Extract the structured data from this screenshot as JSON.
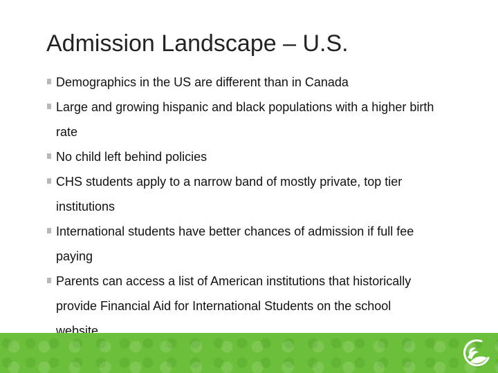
{
  "title": "Admission Landscape – U.S.",
  "bullets": [
    "Demographics in the US are different than in Canada",
    "Large and growing hispanic and black populations with a higher birth rate",
    "No child left behind policies",
    "CHS students apply to a narrow band of mostly private, top tier institutions",
    "International students have better chances of admission if full fee paying",
    "Parents can access a list of American institutions that historically provide Financial Aid for International Students on the school website"
  ],
  "colors": {
    "band": "#6cbf3a",
    "bullet": "#b8b8b8"
  },
  "logo_icon": "leaf-circle-icon"
}
